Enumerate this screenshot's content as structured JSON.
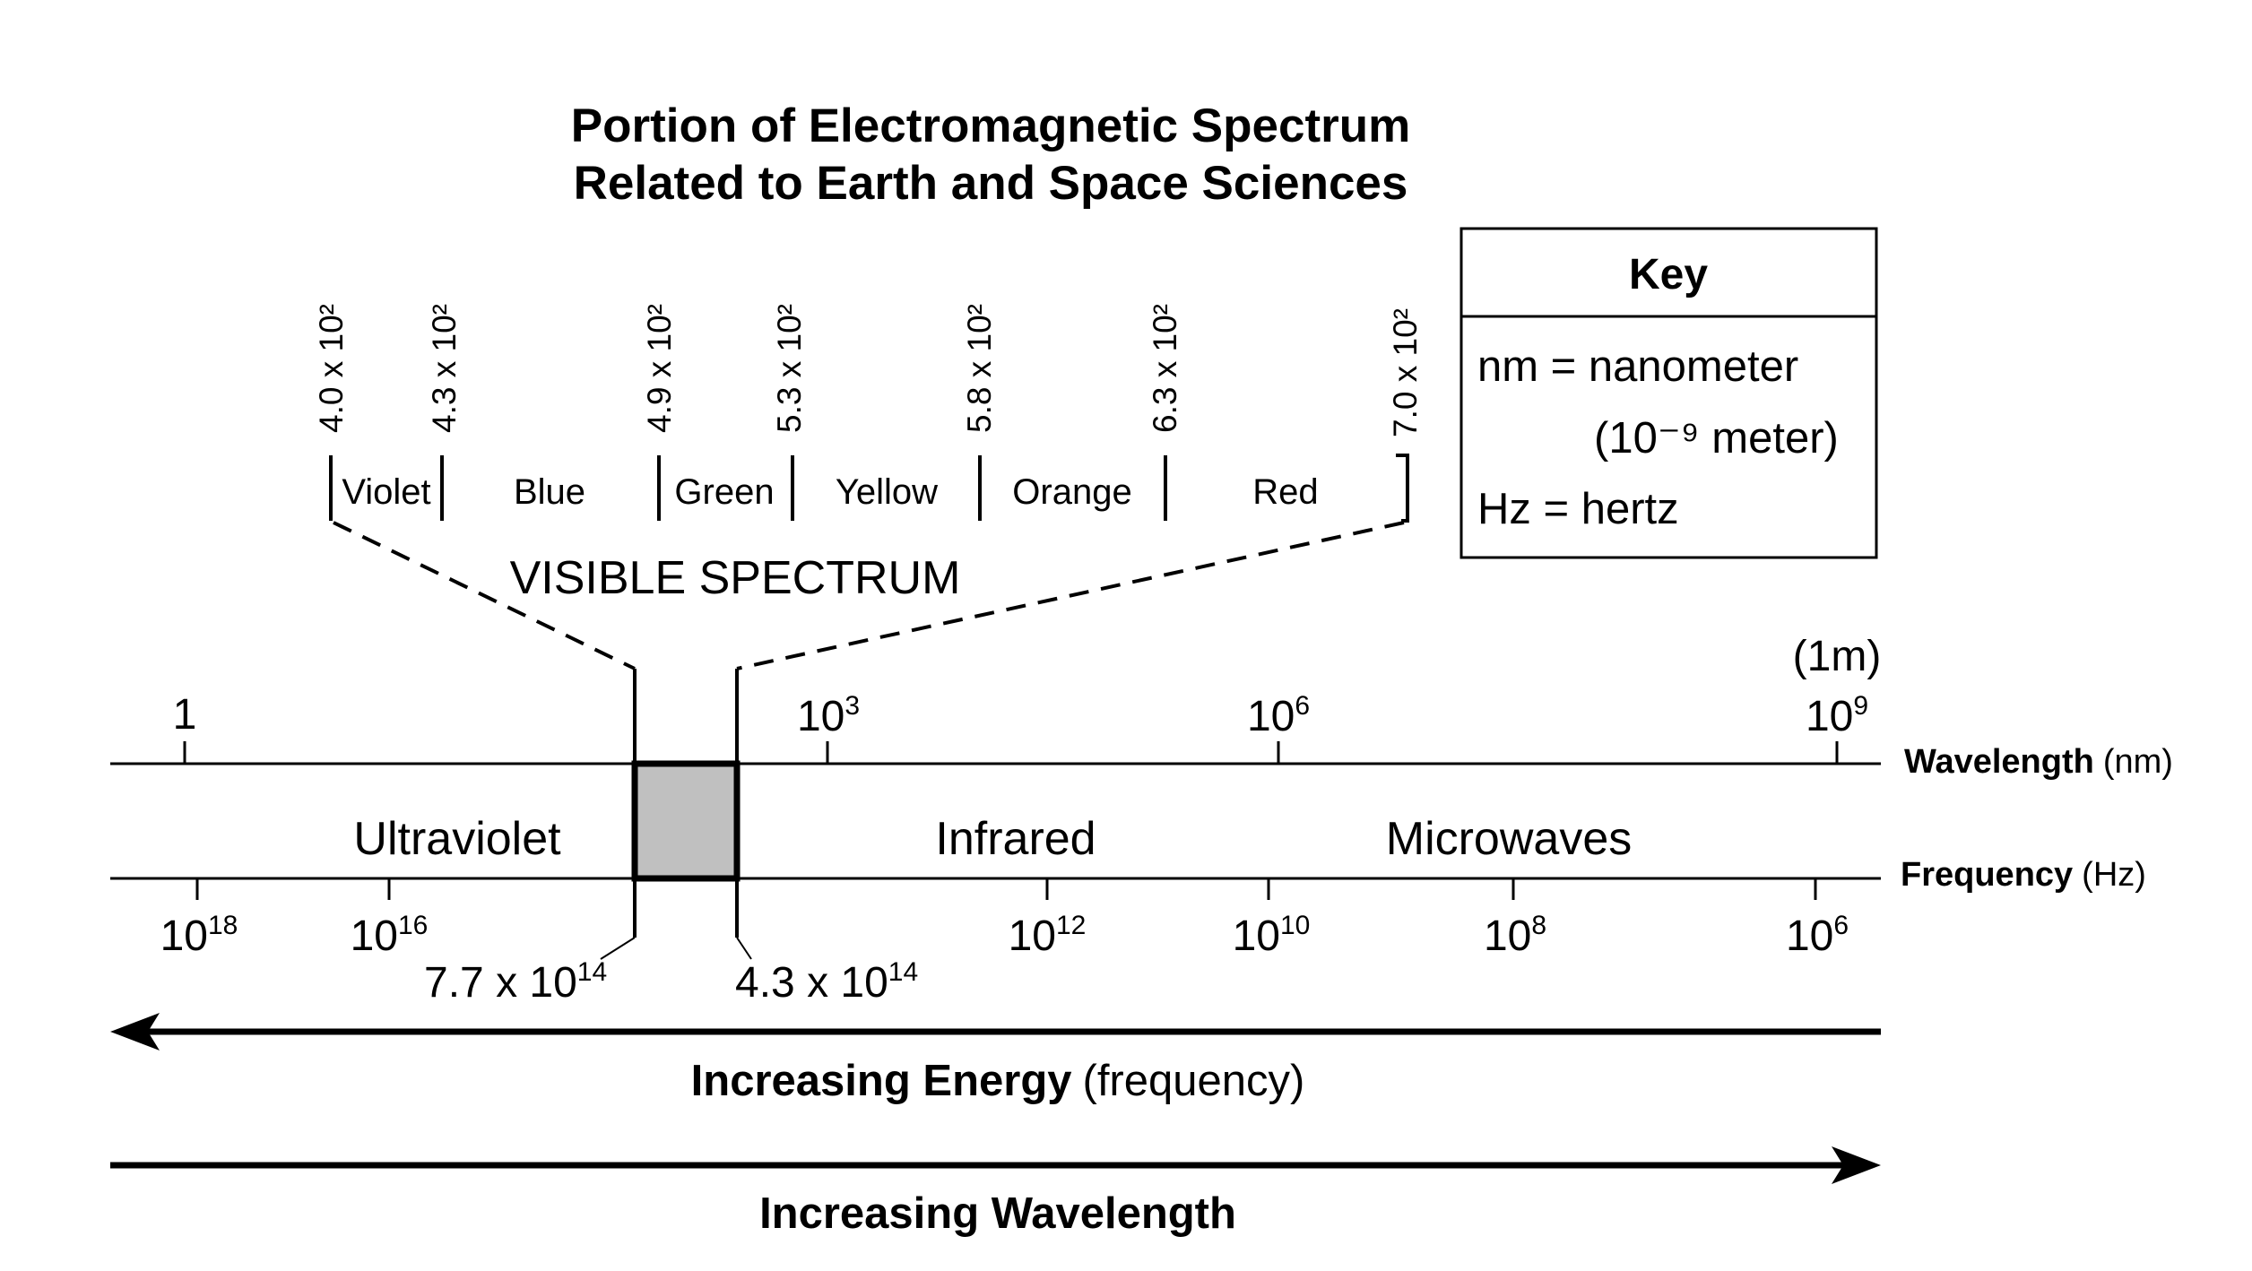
{
  "title": {
    "line1": "Portion of Electromagnetic Spectrum",
    "line2": "Related to Earth and Space Sciences"
  },
  "key": {
    "heading": "Key",
    "line1": "nm = nanometer",
    "line2": "(10⁻⁹ meter)",
    "line3": "Hz = hertz"
  },
  "visible": {
    "label": "VISIBLE SPECTRUM",
    "wavelength_ticks": [
      "4.0 x 10²",
      "4.3 x 10²",
      "4.9 x 10²",
      "5.3 x 10²",
      "5.8 x 10²",
      "6.3 x 10²",
      "7.0 x 10²"
    ],
    "bands": [
      "Violet",
      "Blue",
      "Green",
      "Yellow",
      "Orange",
      "Red"
    ]
  },
  "wavelength_axis": {
    "label_bold": "Wavelength",
    "label_unit": "(nm)",
    "one_meter": "(1m)",
    "ticks": [
      {
        "base": "1",
        "exp": ""
      },
      {
        "base": "10",
        "exp": "3"
      },
      {
        "base": "10",
        "exp": "6"
      },
      {
        "base": "10",
        "exp": "9"
      }
    ]
  },
  "regions": [
    "Ultraviolet",
    "Infrared",
    "Microwaves"
  ],
  "frequency_axis": {
    "label_bold": "Frequency",
    "label_unit": "(Hz)",
    "ticks": [
      {
        "base": "10",
        "exp": "18"
      },
      {
        "base": "10",
        "exp": "16"
      },
      {
        "base": "10",
        "exp": "12"
      },
      {
        "base": "10",
        "exp": "10"
      },
      {
        "base": "10",
        "exp": "8"
      },
      {
        "base": "10",
        "exp": "6"
      }
    ],
    "visible_bounds": [
      {
        "base": "7.7 x 10",
        "exp": "14"
      },
      {
        "base": "4.3 x 10",
        "exp": "14"
      }
    ]
  },
  "arrows": {
    "energy_bold": "Increasing Energy",
    "energy_norm": "(frequency)",
    "wavelength_bold": "Increasing Wavelength"
  },
  "colors": {
    "visible_box_fill": "#c0c0c0",
    "line": "#000000"
  }
}
